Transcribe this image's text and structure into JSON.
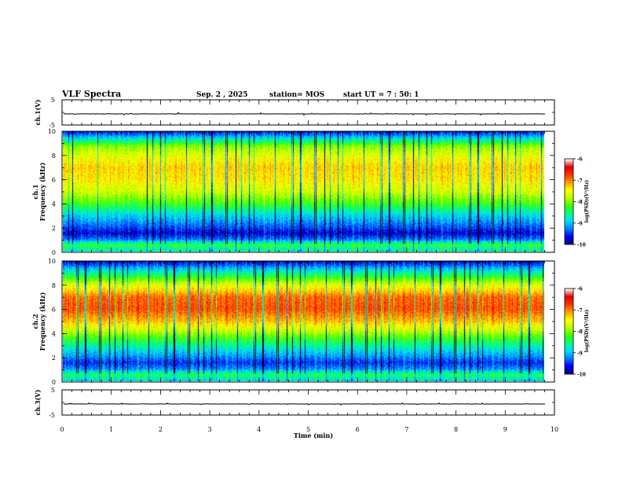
{
  "header": {
    "title": "VLF Spectra",
    "date": "Sep. 2 , 2025",
    "station": "station= MOS",
    "start_time": "start UT =  7 : 50: 1"
  },
  "chart_data": [
    {
      "type": "line",
      "name": "ch1-waveform",
      "ylabel": "ch.1(V)",
      "ylim": [
        -5,
        5
      ],
      "yticks": [
        "5",
        "-5"
      ],
      "baseline_value": -0.6
    },
    {
      "type": "heatmap",
      "name": "ch1-spectrogram",
      "ylabel_lines": [
        "ch.1",
        "Frequency (kHz)"
      ],
      "ylim": [
        0,
        10
      ],
      "yticks": [
        "0",
        "2",
        "4",
        "6",
        "8",
        "10"
      ],
      "intensity_profile": [
        {
          "freq_khz": 0.1,
          "level": -8.7
        },
        {
          "freq_khz": 0.5,
          "level": -8.3
        },
        {
          "freq_khz": 1.0,
          "level": -9.3
        },
        {
          "freq_khz": 1.5,
          "level": -9.7
        },
        {
          "freq_khz": 2.0,
          "level": -9.4
        },
        {
          "freq_khz": 3.0,
          "level": -8.9
        },
        {
          "freq_khz": 4.0,
          "level": -8.2
        },
        {
          "freq_khz": 5.0,
          "level": -7.7
        },
        {
          "freq_khz": 6.0,
          "level": -7.4
        },
        {
          "freq_khz": 7.0,
          "level": -7.3
        },
        {
          "freq_khz": 8.0,
          "level": -7.6
        },
        {
          "freq_khz": 8.8,
          "level": -8.0
        },
        {
          "freq_khz": 9.4,
          "level": -8.8
        },
        {
          "freq_khz": 10.0,
          "level": -9.6
        }
      ],
      "colorbar": {
        "label": "log(PSD)(V²/Hz)",
        "range": [
          -10,
          -6
        ],
        "ticks": [
          "-6",
          "-7",
          "-8",
          "-9",
          "-10"
        ]
      }
    },
    {
      "type": "heatmap",
      "name": "ch2-spectrogram",
      "ylabel_lines": [
        "ch.2",
        "Frequency (kHz)"
      ],
      "ylim": [
        0,
        10
      ],
      "yticks": [
        "0",
        "2",
        "4",
        "6",
        "8",
        "10"
      ],
      "intensity_profile": [
        {
          "freq_khz": 0.1,
          "level": -8.8
        },
        {
          "freq_khz": 0.5,
          "level": -8.4
        },
        {
          "freq_khz": 1.0,
          "level": -9.2
        },
        {
          "freq_khz": 1.5,
          "level": -9.5
        },
        {
          "freq_khz": 2.0,
          "level": -9.2
        },
        {
          "freq_khz": 3.0,
          "level": -8.6
        },
        {
          "freq_khz": 4.0,
          "level": -7.9
        },
        {
          "freq_khz": 5.0,
          "level": -7.2
        },
        {
          "freq_khz": 6.0,
          "level": -6.8
        },
        {
          "freq_khz": 7.0,
          "level": -6.9
        },
        {
          "freq_khz": 8.0,
          "level": -7.6
        },
        {
          "freq_khz": 8.8,
          "level": -8.4
        },
        {
          "freq_khz": 9.4,
          "level": -9.0
        },
        {
          "freq_khz": 10.0,
          "level": -9.7
        }
      ],
      "colorbar": {
        "label": "log(PSD)(V²/Hz)",
        "range": [
          -10,
          -6
        ],
        "ticks": [
          "-6",
          "-7",
          "-8",
          "-9",
          "-10"
        ]
      }
    },
    {
      "type": "line",
      "name": "ch3-waveform",
      "ylabel": "ch.3(V)",
      "ylim": [
        -5,
        5
      ],
      "yticks": [
        "5",
        "-5"
      ],
      "baseline_value": -0.6
    }
  ],
  "xaxis": {
    "label": "Time (min)",
    "range": [
      0,
      10
    ],
    "ticks": [
      "0",
      "1",
      "2",
      "3",
      "4",
      "5",
      "6",
      "7",
      "8",
      "9",
      "10"
    ],
    "data_end": 9.82
  },
  "colors": {
    "colormap": [
      "#00007a",
      "#0000ff",
      "#0080ff",
      "#00e0ff",
      "#00ff80",
      "#40ff00",
      "#c0ff00",
      "#ffff00",
      "#ffa000",
      "#ff3000",
      "#e00000",
      "#ffffff"
    ]
  }
}
